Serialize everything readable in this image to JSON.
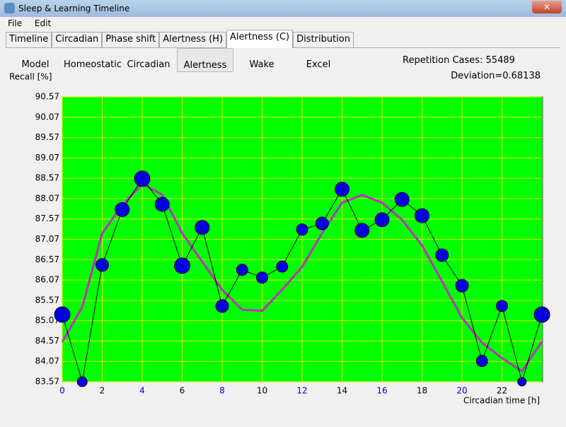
{
  "window": {
    "title": "Sleep & Learning Timeline"
  },
  "menu": [
    "File",
    "Edit"
  ],
  "tabs": [
    "Timeline",
    "Circadian",
    "Phase shift",
    "Alertness (H)",
    "Alertness (C)",
    "Distribution"
  ],
  "buttons": [
    "Model",
    "Homeostatic",
    "Circadian",
    "Alertness",
    "Wake",
    "Excel"
  ],
  "info": {
    "repetition": "Repetition Cases: 55489",
    "deviation": "Deviation=0.68138"
  },
  "chart_data": {
    "type": "line",
    "ylabel": "Recall [%]",
    "xlabel": "Circadian time [h]",
    "x": [
      0,
      1,
      2,
      3,
      4,
      5,
      6,
      7,
      8,
      9,
      10,
      11,
      12,
      13,
      14,
      15,
      16,
      17,
      18,
      19,
      20,
      21,
      22,
      23,
      24
    ],
    "series": [
      {
        "color": "#0000dd",
        "markers": true,
        "values": [
          85.22,
          83.57,
          86.44,
          87.8,
          88.56,
          87.93,
          86.42,
          87.36,
          85.43,
          86.32,
          86.13,
          86.4,
          87.31,
          87.46,
          88.3,
          87.29,
          87.55,
          88.05,
          87.65,
          86.68,
          85.93,
          84.08,
          85.43,
          83.57,
          85.22
        ],
        "sizes": [
          11,
          7,
          9,
          10,
          11,
          10,
          11,
          10,
          9,
          8,
          8,
          8,
          8,
          9,
          10,
          10,
          10,
          10,
          10,
          9,
          9,
          8,
          8,
          6,
          11
        ]
      },
      {
        "color": "#bb33bb",
        "markers": false,
        "values": [
          84.55,
          85.4,
          87.22,
          87.91,
          88.43,
          88.17,
          87.22,
          86.52,
          85.83,
          85.34,
          85.31,
          85.83,
          86.39,
          87.22,
          87.97,
          88.16,
          87.97,
          87.55,
          86.92,
          86.04,
          85.14,
          84.53,
          84.15,
          83.83,
          84.56
        ]
      }
    ],
    "xlim": [
      0,
      24
    ],
    "ylim": [
      83.57,
      90.57
    ],
    "xticks": [
      0,
      2,
      4,
      6,
      8,
      10,
      12,
      14,
      16,
      18,
      20,
      22
    ],
    "xtick_colors": [
      "#0000cc",
      "#000",
      "#0000cc",
      "#000",
      "#0000cc",
      "#000",
      "#0000cc",
      "#000",
      "#0000cc",
      "#000",
      "#0000cc",
      "#000"
    ],
    "yticks": [
      83.57,
      84.07,
      84.57,
      85.07,
      85.57,
      86.07,
      86.57,
      87.07,
      87.57,
      88.07,
      88.57,
      89.07,
      89.57,
      90.07,
      90.57
    ],
    "grid": true,
    "grid_color": "#e8e800",
    "background": "#00ff00"
  }
}
